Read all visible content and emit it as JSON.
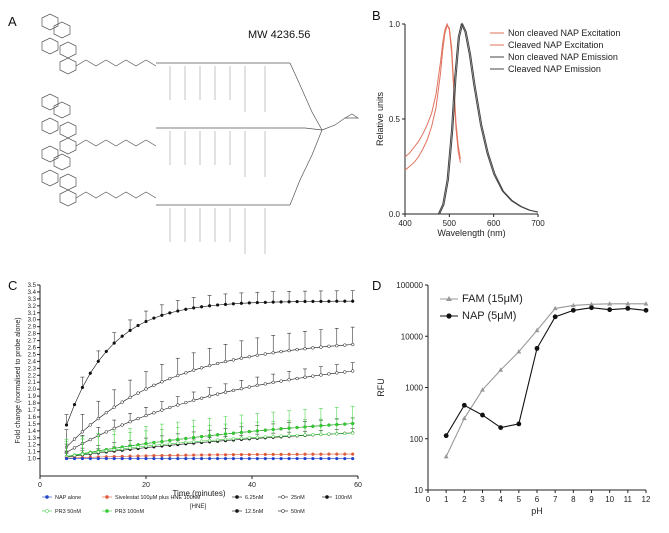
{
  "panels": {
    "a": {
      "label": "A",
      "mw_text": "MW 4236.56"
    },
    "b": {
      "label": "B"
    },
    "c": {
      "label": "C"
    },
    "d": {
      "label": "D"
    }
  },
  "colors": {
    "excitation": "#e0735e",
    "emission": "#444444",
    "hne": "#111111",
    "pr3": "#33cc33",
    "nap_alone": "#2244cc",
    "sivelestat": "#e05a3a",
    "fam": "#999999",
    "nap": "#111111"
  },
  "chart_data": [
    {
      "id": "B",
      "type": "line",
      "xlabel": "Wavelength (nm)",
      "ylabel": "Relative units",
      "xlim": [
        400,
        700
      ],
      "ylim": [
        0,
        1.0
      ],
      "xticks": [
        "400",
        "500",
        "600",
        "700"
      ],
      "yticks": [
        "0.0",
        "0.5",
        "1.0"
      ],
      "legend": [
        "Non cleaved NAP Excitation",
        "Cleaved NAP Excitation",
        "Non cleaved NAP Emission",
        "Cleaved NAP Emission"
      ],
      "series": [
        {
          "name": "Non cleaved NAP Excitation",
          "x": [
            400,
            410,
            420,
            430,
            440,
            450,
            460,
            470,
            480,
            485,
            490,
            495,
            500,
            505,
            510,
            515,
            520,
            525
          ],
          "y": [
            0.3,
            0.32,
            0.35,
            0.38,
            0.42,
            0.47,
            0.53,
            0.63,
            0.8,
            0.9,
            0.97,
            1.0,
            0.97,
            0.85,
            0.65,
            0.45,
            0.33,
            0.27
          ]
        },
        {
          "name": "Cleaved NAP Excitation",
          "x": [
            400,
            410,
            420,
            430,
            440,
            450,
            460,
            470,
            480,
            485,
            490,
            495,
            500,
            505,
            510,
            515,
            520,
            525
          ],
          "y": [
            0.23,
            0.25,
            0.27,
            0.3,
            0.34,
            0.39,
            0.46,
            0.56,
            0.74,
            0.86,
            0.95,
            0.99,
            0.98,
            0.88,
            0.68,
            0.48,
            0.36,
            0.29
          ]
        },
        {
          "name": "Non cleaved NAP Emission",
          "x": [
            475,
            485,
            495,
            505,
            512,
            520,
            527,
            535,
            545,
            555,
            570,
            585,
            600,
            620,
            640,
            660,
            680,
            700
          ],
          "y": [
            0.0,
            0.05,
            0.18,
            0.45,
            0.72,
            0.93,
            1.0,
            0.96,
            0.84,
            0.68,
            0.47,
            0.32,
            0.21,
            0.12,
            0.07,
            0.04,
            0.02,
            0.01
          ]
        },
        {
          "name": "Cleaved NAP Emission",
          "x": [
            478,
            488,
            498,
            508,
            515,
            523,
            530,
            538,
            548,
            558,
            573,
            588,
            603,
            622,
            642,
            662,
            682,
            700
          ],
          "y": [
            0.0,
            0.05,
            0.18,
            0.45,
            0.72,
            0.93,
            1.0,
            0.96,
            0.84,
            0.68,
            0.47,
            0.32,
            0.21,
            0.12,
            0.07,
            0.04,
            0.02,
            0.01
          ]
        }
      ]
    },
    {
      "id": "C",
      "type": "line",
      "xlabel": "Time (minutes)",
      "ylabel": "Fold change (normalised to probe alone)",
      "xlim": [
        0,
        60
      ],
      "ylim": [
        0.75,
        3.5
      ],
      "xticks": [
        "0",
        "20",
        "40",
        "60"
      ],
      "yticks": [
        "1.0",
        "1.1",
        "1.2",
        "1.3",
        "1.4",
        "1.5",
        "1.6",
        "1.7",
        "1.8",
        "1.9",
        "2.0",
        "2.1",
        "2.2",
        "2.3",
        "2.4",
        "2.5",
        "2.6",
        "2.7",
        "2.8",
        "2.9",
        "3.0",
        "3.1",
        "3.2",
        "3.3",
        "3.4",
        "3.5"
      ],
      "legend_group_label": "[HNE]",
      "legend": [
        "NAP alone",
        "Sivelestat 100μM plus HNE 100nM",
        "PR3 50nM",
        "PR3 100nM",
        "6.25nM",
        "12.5nM",
        "25nM",
        "50nM",
        "100nM"
      ],
      "series": [
        {
          "name": "100nM",
          "group": "hne",
          "plateau": 3.27,
          "rate": 0.12,
          "marker": "filled",
          "err": 0.15
        },
        {
          "name": "50nM",
          "group": "hne",
          "plateau": 2.75,
          "rate": 0.05,
          "marker": "open",
          "err": 0.25
        },
        {
          "name": "25nM",
          "group": "hne",
          "plateau": 2.55,
          "rate": 0.03,
          "marker": "open",
          "err": 0.12
        },
        {
          "name": "12.5nM",
          "group": "hne",
          "plateau": 1.75,
          "rate": 0.02,
          "marker": "filled",
          "err": 0.08
        },
        {
          "name": "6.25nM",
          "group": "hne",
          "plateau": 1.55,
          "rate": 0.02,
          "marker": "filled",
          "err": 0.06
        },
        {
          "name": "PR3 100nM",
          "group": "pr3",
          "plateau": 1.75,
          "rate": 0.02,
          "marker": "filled",
          "err": 0.25
        },
        {
          "name": "PR3 50nM",
          "group": "pr3",
          "plateau": 1.45,
          "rate": 0.03,
          "marker": "open",
          "err": 0.22
        },
        {
          "name": "Sivelestat 100μM plus HNE 100nM",
          "group": "siv",
          "plateau": 1.07,
          "rate": 0.05,
          "marker": "filled",
          "err": 0.02
        },
        {
          "name": "NAP alone",
          "group": "nap",
          "plateau": 1.0,
          "rate": 0.05,
          "marker": "filled",
          "err": 0.01
        }
      ]
    },
    {
      "id": "D",
      "type": "line",
      "xlabel": "pH",
      "ylabel": "RFU",
      "xlim": [
        0,
        12
      ],
      "ylim": [
        10,
        100000
      ],
      "yscale": "log",
      "xticks": [
        "0",
        "1",
        "2",
        "3",
        "4",
        "5",
        "6",
        "7",
        "8",
        "9",
        "10",
        "11",
        "12"
      ],
      "yticks": [
        "10",
        "100",
        "1000",
        "10000",
        "100000"
      ],
      "legend": [
        "FAM (15μM)",
        "NAP (5μM)"
      ],
      "series": [
        {
          "name": "FAM (15μM)",
          "x": [
            1,
            2,
            3,
            4,
            5,
            6,
            7,
            8,
            9,
            10,
            11,
            12
          ],
          "y": [
            45,
            250,
            900,
            2200,
            5000,
            13000,
            35000,
            40000,
            42000,
            43000,
            43000,
            43000
          ]
        },
        {
          "name": "NAP (5μM)",
          "x": [
            1,
            2,
            3,
            4,
            5,
            6,
            7,
            8,
            9,
            10,
            11,
            12
          ],
          "y": [
            115,
            450,
            290,
            165,
            195,
            5800,
            24000,
            32000,
            36000,
            33000,
            35000,
            32000
          ]
        }
      ]
    }
  ]
}
